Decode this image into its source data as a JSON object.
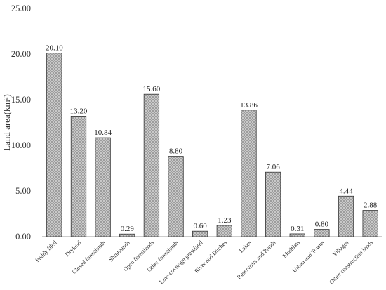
{
  "chart_data": {
    "type": "bar",
    "title": "",
    "xlabel": "",
    "ylabel": "Land area(km²)",
    "ylim": [
      0,
      25
    ],
    "y_ticks": [
      "0.00",
      "5.00",
      "10.00",
      "15.00",
      "20.00",
      "25.00"
    ],
    "grid": false,
    "bar_pattern": "crosshatch-gray",
    "categories": [
      "Paddy filed",
      "Dryland",
      "Closed forestlands",
      "Shrublands",
      "Open forestlands",
      "Other forestlands",
      "Low-coverage grassland",
      "River and Ditches",
      "Lakes",
      "Reservoirs and Ponds",
      "Mudflats",
      "Urban and Towns",
      "Villages",
      "Other construction lands"
    ],
    "values": [
      20.1,
      13.2,
      10.84,
      0.29,
      15.6,
      8.8,
      0.6,
      1.23,
      13.86,
      7.06,
      0.31,
      0.8,
      4.44,
      2.88
    ],
    "data_labels": [
      "20.10",
      "13.20",
      "10.84",
      "0.29",
      "15.60",
      "8.80",
      "0.60",
      "1.23",
      "13.86",
      "7.06",
      "0.31",
      "0.80",
      "4.44",
      "2.88"
    ]
  }
}
